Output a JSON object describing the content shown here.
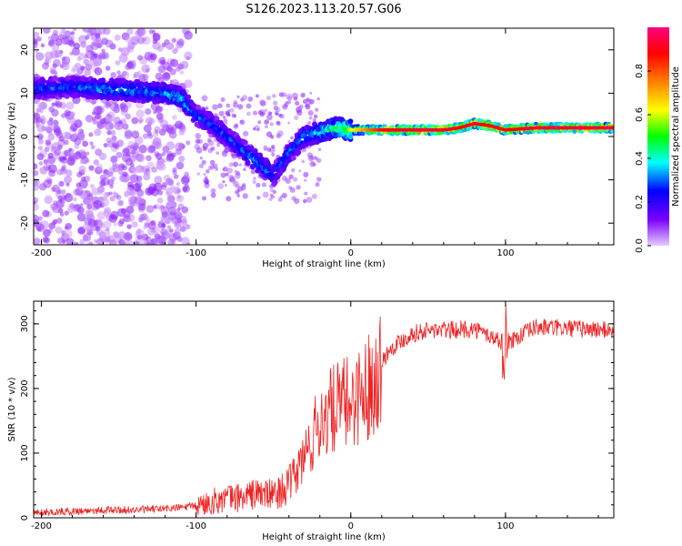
{
  "figure_title": "S126.2023.113.20.57.G06",
  "chart_data": [
    {
      "type": "heatmap",
      "xlabel": "Height of straight line (km)",
      "ylabel": "Frequency (Hz)",
      "xlim": [
        -205,
        170
      ],
      "ylim": [
        -25,
        25
      ],
      "x_ticks": [
        -200,
        -100,
        0,
        100
      ],
      "y_ticks": [
        -20,
        -10,
        0,
        10,
        20
      ],
      "colorbar": {
        "label": "Normalized spectral amplitude",
        "range": [
          0,
          1
        ],
        "ticks": [
          "0.0",
          "0.2",
          "0.4",
          "0.6",
          "0.8"
        ],
        "colors": [
          "#e6ccff",
          "#7a00ff",
          "#0000ff",
          "#00ffff",
          "#00ff00",
          "#ffff00",
          "#ff8000",
          "#ff0000",
          "#ff0080"
        ]
      },
      "ridge": {
        "x": [
          -200,
          -180,
          -160,
          -140,
          -120,
          -110,
          -100,
          -90,
          -80,
          -70,
          -60,
          -50,
          -40,
          -30,
          -20,
          -10,
          0,
          20,
          40,
          60,
          70,
          80,
          90,
          100,
          120,
          140,
          170
        ],
        "freq": [
          11,
          11.5,
          11,
          10.5,
          10,
          9,
          5,
          3,
          0,
          -3,
          -6,
          -9,
          -4,
          0,
          1,
          2,
          1.5,
          1.5,
          1.5,
          1.5,
          2,
          3,
          2.5,
          1.5,
          2,
          2,
          2
        ],
        "amplitude": [
          0.3,
          0.3,
          0.35,
          0.35,
          0.35,
          0.4,
          0.3,
          0.3,
          0.3,
          0.3,
          0.35,
          0.3,
          0.3,
          0.35,
          0.4,
          0.5,
          0.6,
          0.85,
          0.9,
          0.9,
          0.85,
          0.9,
          0.85,
          0.85,
          0.9,
          0.9,
          0.9
        ]
      }
    },
    {
      "type": "line",
      "xlabel": "Height of straight line (km)",
      "ylabel": "SNR (10 * v/v)",
      "xlim": [
        -205,
        170
      ],
      "ylim": [
        0,
        335
      ],
      "x_ticks": [
        -200,
        -100,
        0,
        100
      ],
      "y_ticks": [
        0,
        100,
        200,
        300
      ],
      "color": "#ee2222",
      "series": [
        {
          "x": [
            -205,
            -180,
            -160,
            -140,
            -120,
            -100,
            -90,
            -80,
            -70,
            -60,
            -50,
            -40,
            -35,
            -30,
            -25,
            -20,
            -15,
            -10,
            -5,
            0,
            5,
            10,
            15,
            20,
            25,
            30,
            40,
            50,
            60,
            80,
            100,
            120,
            140,
            170
          ],
          "values": [
            8,
            10,
            12,
            12,
            14,
            18,
            25,
            30,
            32,
            38,
            35,
            50,
            70,
            95,
            120,
            150,
            160,
            170,
            175,
            180,
            190,
            200,
            215,
            240,
            260,
            270,
            285,
            290,
            290,
            292,
            270,
            295,
            293,
            290
          ]
        }
      ]
    }
  ]
}
